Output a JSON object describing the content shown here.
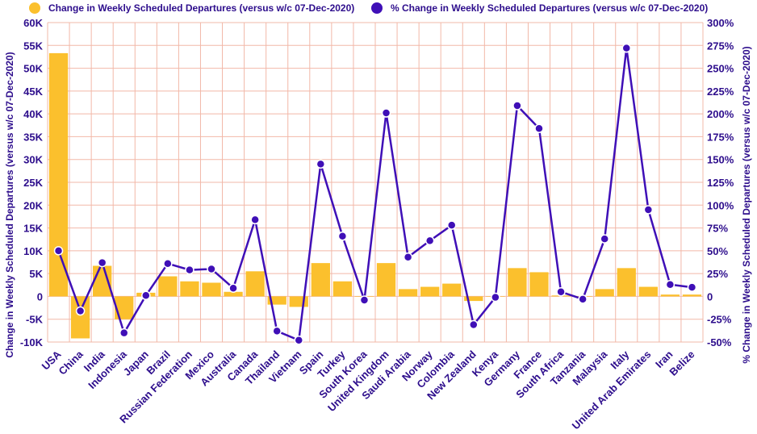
{
  "chart_data": {
    "type": "bar",
    "categories": [
      "USA",
      "China",
      "India",
      "Indonesia",
      "Japan",
      "Brazil",
      "Russian Federation",
      "Mexico",
      "Australia",
      "Canada",
      "Thailand",
      "Vietnam",
      "Spain",
      "Turkey",
      "South Korea",
      "United Kingdom",
      "Saudi Arabia",
      "Norway",
      "Colombia",
      "New Zealand",
      "Kenya",
      "Germany",
      "France",
      "South Africa",
      "Tanzania",
      "Malaysia",
      "Italy",
      "United Arab Emirates",
      "Iran",
      "Belize"
    ],
    "series": [
      {
        "name": "Change in Weekly Scheduled Departures (versus w/c 07-Dec-2020)",
        "type": "bar",
        "axis": "left",
        "color": "#fbc02d",
        "values": [
          53300,
          -9200,
          6700,
          -5000,
          800,
          4400,
          3300,
          3000,
          1000,
          5500,
          -1800,
          -2300,
          7300,
          3300,
          0,
          7300,
          1600,
          2100,
          2800,
          -1000,
          0,
          6200,
          5300,
          200,
          0,
          1600,
          6200,
          2100,
          400,
          400
        ]
      },
      {
        "name": "% Change in Weekly Scheduled Departures (versus w/c 07-Dec-2020)",
        "type": "line",
        "axis": "right",
        "color": "#3f0fb7",
        "values": [
          50,
          -16,
          37,
          -40,
          1,
          36,
          29,
          30,
          9,
          84,
          -38,
          -48,
          145,
          66,
          -4,
          201,
          43,
          61,
          78,
          -31,
          -1,
          209,
          184,
          5,
          -3,
          63,
          272,
          95,
          13,
          10
        ]
      }
    ],
    "y_left": {
      "title": "Change in Weekly Scheduled Departures (versus w/c 07-Dec-2020)",
      "ylim": [
        -10000,
        60000
      ],
      "ticks": [
        -10000,
        -5000,
        0,
        5000,
        10000,
        15000,
        20000,
        25000,
        30000,
        35000,
        40000,
        45000,
        50000,
        55000,
        60000
      ],
      "tick_labels": [
        "-10K",
        "-5K",
        "0",
        "5K",
        "10K",
        "15K",
        "20K",
        "25K",
        "30K",
        "35K",
        "40K",
        "45K",
        "50K",
        "55K",
        "60K"
      ]
    },
    "y_right": {
      "title": "% Change in Weekly Scheduled Departures (versus w/c 07-Dec-2020)",
      "ylim": [
        -50,
        300
      ],
      "ticks": [
        -50,
        -25,
        0,
        25,
        50,
        75,
        100,
        125,
        150,
        175,
        200,
        225,
        250,
        275,
        300
      ],
      "tick_labels": [
        "-50%",
        "-25%",
        "0",
        "25%",
        "50%",
        "75%",
        "100%",
        "125%",
        "150%",
        "175%",
        "200%",
        "225%",
        "250%",
        "275%",
        "300%"
      ]
    },
    "grid": true,
    "legend": "top"
  }
}
